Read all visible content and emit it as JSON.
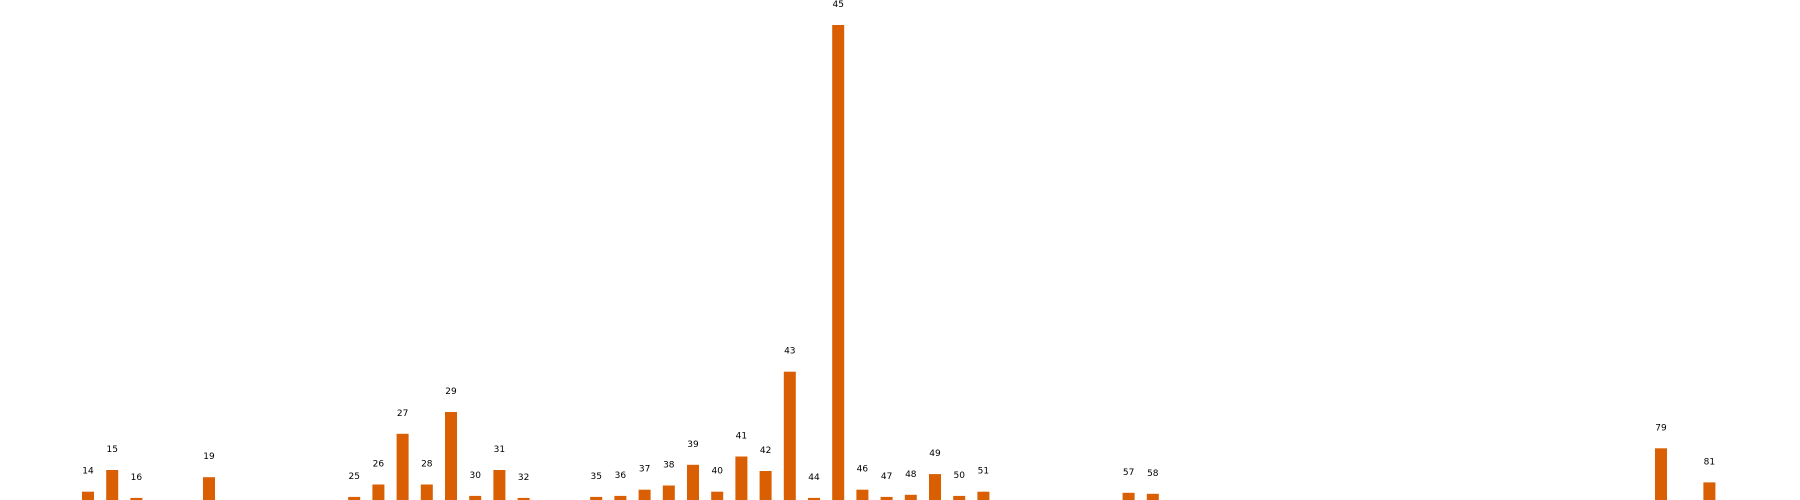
{
  "chart_data": {
    "type": "bar",
    "title": "",
    "xlabel": "",
    "ylabel": "",
    "grid": false,
    "legend": "none",
    "bar_color": "#d95f02",
    "label_color": "#000000",
    "ylim": [
      0,
      46
    ],
    "bars": [
      {
        "label": "14",
        "value": 0.8
      },
      {
        "label": "15",
        "value": 2.9
      },
      {
        "label": "16",
        "value": 0.2
      },
      {
        "label": "19",
        "value": 2.2
      },
      {
        "label": "25",
        "value": 0.3
      },
      {
        "label": "26",
        "value": 1.5
      },
      {
        "label": "27",
        "value": 6.4
      },
      {
        "label": "28",
        "value": 1.5
      },
      {
        "label": "29",
        "value": 8.5
      },
      {
        "label": "30",
        "value": 0.4
      },
      {
        "label": "31",
        "value": 2.9
      },
      {
        "label": "32",
        "value": 0.2
      },
      {
        "label": "35",
        "value": 0.3
      },
      {
        "label": "36",
        "value": 0.4
      },
      {
        "label": "37",
        "value": 1.0
      },
      {
        "label": "38",
        "value": 1.4
      },
      {
        "label": "39",
        "value": 3.4
      },
      {
        "label": "40",
        "value": 0.8
      },
      {
        "label": "41",
        "value": 4.2
      },
      {
        "label": "42",
        "value": 2.8
      },
      {
        "label": "43",
        "value": 12.4
      },
      {
        "label": "44",
        "value": 0.2
      },
      {
        "label": "45",
        "value": 45.9
      },
      {
        "label": "46",
        "value": 1.0
      },
      {
        "label": "47",
        "value": 0.3
      },
      {
        "label": "48",
        "value": 0.5
      },
      {
        "label": "49",
        "value": 2.5
      },
      {
        "label": "50",
        "value": 0.4
      },
      {
        "label": "51",
        "value": 0.8
      },
      {
        "label": "57",
        "value": 0.7
      },
      {
        "label": "58",
        "value": 0.6
      },
      {
        "label": "79",
        "value": 5.0
      },
      {
        "label": "81",
        "value": 1.7
      }
    ]
  }
}
